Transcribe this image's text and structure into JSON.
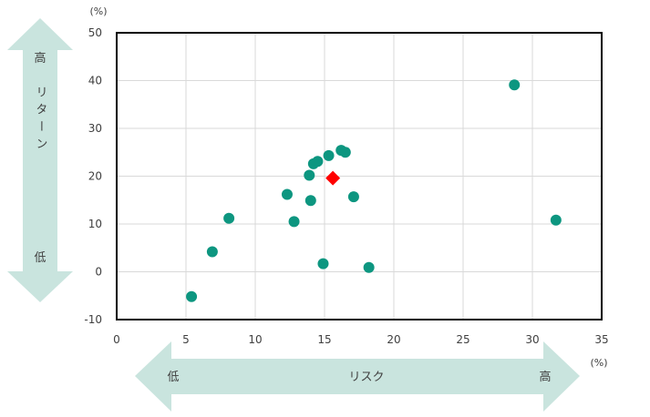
{
  "chart_data": {
    "type": "scatter",
    "x_unit": "(%)",
    "y_unit": "(%)",
    "xlim": [
      0,
      35
    ],
    "ylim": [
      -10,
      50
    ],
    "xticks": [
      0,
      5,
      10,
      15,
      20,
      25,
      30,
      35
    ],
    "yticks": [
      -10,
      0,
      10,
      20,
      30,
      40,
      50
    ],
    "grid": true,
    "series": [
      {
        "marker": "circle",
        "color": "#0d9680",
        "points": [
          {
            "x": 5.4,
            "y": -5.2
          },
          {
            "x": 6.9,
            "y": 4.2
          },
          {
            "x": 8.1,
            "y": 11.2
          },
          {
            "x": 12.3,
            "y": 16.2
          },
          {
            "x": 12.8,
            "y": 10.5
          },
          {
            "x": 13.9,
            "y": 20.2
          },
          {
            "x": 14.0,
            "y": 14.9
          },
          {
            "x": 14.2,
            "y": 22.6
          },
          {
            "x": 14.5,
            "y": 23.1
          },
          {
            "x": 15.3,
            "y": 24.3
          },
          {
            "x": 14.9,
            "y": 1.7
          },
          {
            "x": 16.2,
            "y": 25.4
          },
          {
            "x": 16.5,
            "y": 25.0
          },
          {
            "x": 17.1,
            "y": 15.7
          },
          {
            "x": 18.2,
            "y": 0.9
          },
          {
            "x": 28.7,
            "y": 39.1
          },
          {
            "x": 31.7,
            "y": 10.8
          }
        ]
      },
      {
        "marker": "diamond",
        "color": "#ff0000",
        "points": [
          {
            "x": 15.6,
            "y": 19.6
          }
        ]
      }
    ]
  },
  "y_arrow": {
    "high": "高",
    "label": "リターン",
    "low": "低"
  },
  "x_arrow": {
    "low": "低",
    "label": "リスク",
    "high": "高"
  },
  "colors": {
    "arrow_fill": "#c9e4de",
    "grid": "#d9d9d9",
    "frame": "#000000"
  }
}
